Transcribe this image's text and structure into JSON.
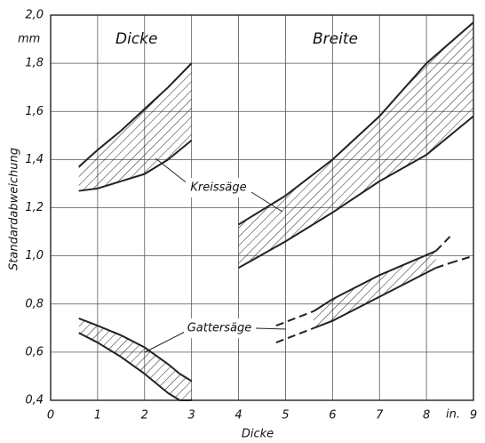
{
  "chart_data": {
    "type": "band",
    "y_label": "Standardabweichung",
    "x_label": "Dicke",
    "y_unit": "mm",
    "x_unit": "in.",
    "panel_labels": [
      "Dicke",
      "Breite"
    ],
    "annotations": [
      "Kreissäge",
      "Gattersäge"
    ],
    "xlim": [
      0,
      9
    ],
    "xticks": [
      0,
      1,
      2,
      3,
      4,
      5,
      6,
      7,
      8,
      9
    ],
    "ylim": [
      0.4,
      2.0
    ],
    "yticks": [
      {
        "value": 0.4,
        "label": "0,4"
      },
      {
        "value": 0.6,
        "label": "0,6"
      },
      {
        "value": 0.8,
        "label": "0,8"
      },
      {
        "value": 1.0,
        "label": "1,0"
      },
      {
        "value": 1.2,
        "label": "1,2"
      },
      {
        "value": 1.4,
        "label": "1,4"
      },
      {
        "value": 1.6,
        "label": "1,6"
      },
      {
        "value": 1.8,
        "label": "1,8"
      },
      {
        "value": 2.0,
        "label": "2,0"
      }
    ],
    "grid": true,
    "color": "#222",
    "bands": [
      {
        "x": [
          0.6,
          1,
          1.5,
          2,
          2.5,
          3
        ],
        "upper": [
          1.37,
          1.44,
          1.52,
          1.61,
          1.7,
          1.8
        ],
        "lower": [
          1.27,
          1.28,
          1.31,
          1.34,
          1.4,
          1.48
        ]
      },
      {
        "x": [
          4,
          5,
          6,
          7,
          8,
          9
        ],
        "upper": [
          1.13,
          1.25,
          1.4,
          1.58,
          1.8,
          1.97
        ],
        "lower": [
          0.95,
          1.06,
          1.18,
          1.31,
          1.42,
          1.58
        ]
      },
      {
        "x": [
          0.6,
          1,
          1.5,
          2,
          2.5,
          2.75,
          3
        ],
        "upper": [
          0.74,
          0.71,
          0.67,
          0.62,
          0.55,
          0.51,
          0.48
        ],
        "lower": [
          0.68,
          0.64,
          0.58,
          0.51,
          0.43,
          0.4,
          0.4
        ]
      },
      {
        "x": [
          4.8,
          5.6,
          6,
          7,
          8.2,
          8.5,
          9
        ],
        "upper": [
          0.71,
          0.77,
          0.82,
          0.92,
          1.02,
          1.08,
          null
        ],
        "lower": [
          0.64,
          0.7,
          0.73,
          0.83,
          0.95,
          0.97,
          1.0
        ],
        "hatch_range": [
          5.6,
          8.2
        ]
      }
    ]
  }
}
